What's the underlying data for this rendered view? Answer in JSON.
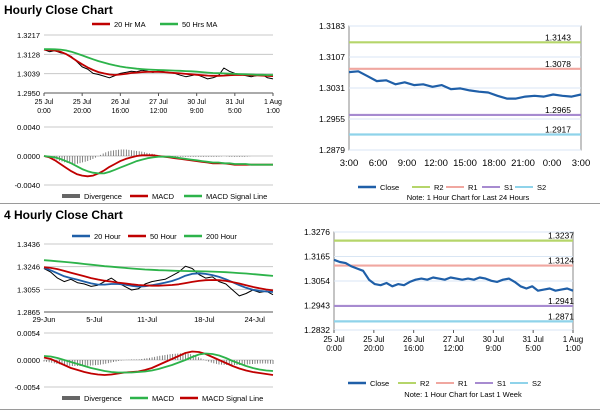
{
  "sections": [
    {
      "title": "Hourly Close Chart"
    },
    {
      "title": "4 Hourly Close Chart"
    }
  ],
  "colors": {
    "red": "#c00000",
    "green": "#2db34a",
    "black": "#000000",
    "blue": "#1f5fa8",
    "grid": "#c8c8c8",
    "divergence": "#666666",
    "r2": "#b5d56a",
    "r1": "#f0a7a0",
    "s1": "#a78bd0",
    "s2": "#8fd3ea",
    "gridBlue": "#d9e6f4"
  },
  "chart_data": [
    {
      "id": "hourly-price",
      "type": "line",
      "legend": [
        "20 Hr MA",
        "50 Hrs MA"
      ],
      "ylim": [
        1.295,
        1.3217
      ],
      "yticks": [
        "1.3217",
        "1.3128",
        "1.3039",
        "1.2950"
      ],
      "yticks_values": [
        1.3217,
        1.3128,
        1.3039,
        1.295
      ],
      "xticks": [
        "25 Jul\n0:00",
        "25 Jul\n20:00",
        "26 Jul\n16:00",
        "27 Jul\n12:00",
        "30 Jul\n9:00",
        "31 Jul\n5:00",
        "1 Aug\n1:00"
      ],
      "series": [
        {
          "name": "Close",
          "color": "black",
          "values": [
            1.315,
            1.314,
            1.3145,
            1.3135,
            1.313,
            1.3118,
            1.3095,
            1.307,
            1.306,
            1.304,
            1.3035,
            1.3028,
            1.302,
            1.303,
            1.304,
            1.3045,
            1.305,
            1.3048,
            1.3055,
            1.305,
            1.3045,
            1.3052,
            1.3048,
            1.3044,
            1.304,
            1.3032,
            1.3025,
            1.303,
            1.3035,
            1.3025,
            1.3015,
            1.302,
            1.303,
            1.3065,
            1.305,
            1.304,
            1.3035,
            1.303,
            1.3025,
            1.303,
            1.3035,
            1.302,
            1.3015
          ]
        },
        {
          "name": "20 Hr MA",
          "color": "red",
          "values": [
            1.315,
            1.3148,
            1.3145,
            1.314,
            1.313,
            1.3115,
            1.3098,
            1.3082,
            1.3068,
            1.3056,
            1.3046,
            1.304,
            1.3035,
            1.3033,
            1.3035,
            1.3038,
            1.3042,
            1.3044,
            1.3046,
            1.3047,
            1.3047,
            1.3047,
            1.3046,
            1.3044,
            1.3042,
            1.304,
            1.3038,
            1.3036,
            1.3034,
            1.3032,
            1.303,
            1.3029,
            1.3029,
            1.303,
            1.3032,
            1.3033,
            1.3033,
            1.3033,
            1.3032,
            1.3031,
            1.303,
            1.3029,
            1.3028
          ]
        },
        {
          "name": "50 Hrs MA",
          "color": "green",
          "values": [
            1.3152,
            1.3152,
            1.3151,
            1.315,
            1.3146,
            1.314,
            1.3132,
            1.3123,
            1.3114,
            1.3105,
            1.3097,
            1.309,
            1.3083,
            1.3077,
            1.3072,
            1.3068,
            1.3065,
            1.3062,
            1.306,
            1.3058,
            1.3057,
            1.3056,
            1.3055,
            1.3054,
            1.3053,
            1.3052,
            1.3051,
            1.305,
            1.3048,
            1.3046,
            1.3044,
            1.3042,
            1.3041,
            1.304,
            1.3039,
            1.3038,
            1.3037,
            1.3036,
            1.3035,
            1.3034,
            1.3034,
            1.3033,
            1.3033
          ]
        }
      ]
    },
    {
      "id": "hourly-macd",
      "type": "line",
      "legend": [
        "Divergence",
        "MACD",
        "MACD Signal Line"
      ],
      "ylim": [
        -0.004,
        0.004
      ],
      "yticks": [
        "0.0040",
        "0.0000",
        "-0.0040"
      ],
      "yticks_values": [
        0.004,
        0.0,
        -0.004
      ],
      "series": [
        {
          "name": "MACD",
          "color": "red",
          "values": [
            0.0,
            -0.0002,
            -0.0006,
            -0.0011,
            -0.0016,
            -0.0021,
            -0.0025,
            -0.0027,
            -0.0028,
            -0.0027,
            -0.0024,
            -0.002,
            -0.0015,
            -0.0011,
            -0.0007,
            -0.0004,
            -0.0002,
            0.0,
            0.0001,
            0.0001,
            0.0001,
            0.0,
            -0.0001,
            -0.0002,
            -0.0003,
            -0.0004,
            -0.0005,
            -0.0006,
            -0.0007,
            -0.0008,
            -0.0009,
            -0.001,
            -0.001,
            -0.001,
            -0.0011,
            -0.0012,
            -0.0012,
            -0.0012,
            -0.0012,
            -0.0012,
            -0.0012,
            -0.0012,
            -0.0012
          ]
        },
        {
          "name": "MACD Signal Line",
          "color": "green",
          "values": [
            0.0,
            -0.0001,
            -0.0002,
            -0.0004,
            -0.0007,
            -0.001,
            -0.0014,
            -0.0018,
            -0.0021,
            -0.0023,
            -0.0024,
            -0.0024,
            -0.0022,
            -0.0019,
            -0.0016,
            -0.0013,
            -0.001,
            -0.0007,
            -0.0005,
            -0.0003,
            -0.0002,
            -0.0001,
            -0.0001,
            -0.0001,
            -0.0002,
            -0.0003,
            -0.0004,
            -0.0005,
            -0.0006,
            -0.0007,
            -0.0008,
            -0.0009,
            -0.0009,
            -0.001,
            -0.001,
            -0.0011,
            -0.0011,
            -0.0011,
            -0.0012,
            -0.0012,
            -0.0012,
            -0.0012,
            -0.0012
          ]
        }
      ]
    },
    {
      "id": "hourly-levels",
      "type": "line",
      "ylim": [
        1.2879,
        1.3183
      ],
      "yticks": [
        "1.3183",
        "1.3107",
        "1.3031",
        "1.2955",
        "1.2879"
      ],
      "yticks_values": [
        1.3183,
        1.3107,
        1.3031,
        1.2955,
        1.2879
      ],
      "xticks": [
        "3:00",
        "6:00",
        "9:00",
        "12:00",
        "15:00",
        "18:00",
        "21:00",
        "0:00",
        "3:00"
      ],
      "levels": [
        {
          "name": "R2",
          "value": 1.3143,
          "label": "1.3143",
          "color": "r2"
        },
        {
          "name": "R1",
          "value": 1.3078,
          "label": "1.3078",
          "color": "r1"
        },
        {
          "name": "S1",
          "value": 1.2965,
          "label": "1.2965",
          "color": "s1"
        },
        {
          "name": "S2",
          "value": 1.2917,
          "label": "1.2917",
          "color": "s2"
        }
      ],
      "series": [
        {
          "name": "Close",
          "color": "blue",
          "values": [
            1.307,
            1.3072,
            1.306,
            1.3048,
            1.305,
            1.304,
            1.3045,
            1.3038,
            1.304,
            1.3034,
            1.3038,
            1.3028,
            1.303,
            1.3025,
            1.3022,
            1.302,
            1.3012,
            1.3005,
            1.3005,
            1.301,
            1.3012,
            1.301,
            1.3015,
            1.3012,
            1.301,
            1.3015
          ]
        }
      ],
      "legend": [
        "Close",
        "R2",
        "R1",
        "S1",
        "S2"
      ],
      "note": "Note: 1 Hour Chart for Last 24 Hours"
    },
    {
      "id": "4h-price",
      "type": "line",
      "legend": [
        "20 Hour",
        "50 Hour",
        "200 Hour"
      ],
      "ylim": [
        1.2865,
        1.3436
      ],
      "yticks": [
        "1.3436",
        "1.3246",
        "1.3055",
        "1.2865"
      ],
      "yticks_values": [
        1.3436,
        1.3246,
        1.3055,
        1.2865
      ],
      "xticks": [
        "29-Jun",
        "5-Jul",
        "11-Jul",
        "18-Jul",
        "24-Jul"
      ],
      "series": [
        {
          "name": "Close",
          "color": "black",
          "values": [
            1.323,
            1.32,
            1.315,
            1.312,
            1.314,
            1.311,
            1.31,
            1.308,
            1.309,
            1.312,
            1.315,
            1.311,
            1.308,
            1.305,
            1.306,
            1.31,
            1.312,
            1.313,
            1.314,
            1.317,
            1.32,
            1.325,
            1.323,
            1.318,
            1.315,
            1.316,
            1.312,
            1.31,
            1.305,
            1.3,
            1.302,
            1.305,
            1.303,
            1.304,
            1.301
          ]
        },
        {
          "name": "20 Hour",
          "color": "blue",
          "values": [
            1.3235,
            1.3215,
            1.319,
            1.3165,
            1.315,
            1.3135,
            1.312,
            1.3105,
            1.3095,
            1.3095,
            1.31,
            1.31,
            1.3095,
            1.3085,
            1.3078,
            1.3082,
            1.309,
            1.31,
            1.3112,
            1.3125,
            1.3145,
            1.317,
            1.3185,
            1.319,
            1.3185,
            1.3175,
            1.316,
            1.314,
            1.3115,
            1.309,
            1.3068,
            1.3052,
            1.3042,
            1.3037,
            1.3033
          ]
        },
        {
          "name": "50 Hour",
          "color": "red",
          "values": [
            1.324,
            1.3235,
            1.3225,
            1.321,
            1.3195,
            1.318,
            1.3165,
            1.315,
            1.3138,
            1.3128,
            1.312,
            1.3112,
            1.3105,
            1.3098,
            1.3092,
            1.3088,
            1.3086,
            1.3086,
            1.3088,
            1.3092,
            1.3098,
            1.3108,
            1.3118,
            1.3126,
            1.3132,
            1.3134,
            1.3132,
            1.3126,
            1.3116,
            1.3104,
            1.309,
            1.3076,
            1.3064,
            1.3054,
            1.3046
          ]
        },
        {
          "name": "200 Hour",
          "color": "green",
          "values": [
            1.33,
            1.3296,
            1.3291,
            1.3286,
            1.3281,
            1.3275,
            1.3268,
            1.3262,
            1.3256,
            1.325,
            1.3245,
            1.324,
            1.3235,
            1.323,
            1.3226,
            1.3222,
            1.3219,
            1.3216,
            1.3214,
            1.3212,
            1.321,
            1.3209,
            1.3208,
            1.3207,
            1.3206,
            1.3204,
            1.3202,
            1.3199,
            1.3196,
            1.3192,
            1.3188,
            1.3183,
            1.3178,
            1.3173,
            1.3168
          ]
        }
      ]
    },
    {
      "id": "4h-macd",
      "type": "line",
      "legend": [
        "Divergence",
        "MACD",
        "MACD Signal Line"
      ],
      "ylim": [
        -0.0054,
        0.0054
      ],
      "yticks": [
        "0.0054",
        "0.0000",
        "-0.0054"
      ],
      "yticks_values": [
        0.0054,
        0.0,
        -0.0054
      ],
      "series": [
        {
          "name": "MACD",
          "color": "red",
          "values": [
            0.0005,
            0.0002,
            -0.0004,
            -0.001,
            -0.0016,
            -0.002,
            -0.0024,
            -0.0027,
            -0.0029,
            -0.003,
            -0.0029,
            -0.0027,
            -0.0025,
            -0.0024,
            -0.0023,
            -0.002,
            -0.0016,
            -0.001,
            -0.0004,
            0.0002,
            0.0008,
            0.0014,
            0.0017,
            0.0016,
            0.0012,
            0.0006,
            0.0,
            -0.0006,
            -0.0012,
            -0.0017,
            -0.0021,
            -0.0024,
            -0.0026,
            -0.0028,
            -0.003
          ]
        },
        {
          "name": "MACD Signal Line",
          "color": "green",
          "values": [
            0.0008,
            0.0007,
            0.0004,
            0.0,
            -0.0004,
            -0.0008,
            -0.0012,
            -0.0016,
            -0.0019,
            -0.0022,
            -0.0024,
            -0.0025,
            -0.0025,
            -0.0025,
            -0.0024,
            -0.0023,
            -0.0021,
            -0.0018,
            -0.0014,
            -0.001,
            -0.0005,
            0.0,
            0.0006,
            0.0011,
            0.0013,
            0.0012,
            0.0009,
            0.0004,
            -0.0002,
            -0.0007,
            -0.0012,
            -0.0016,
            -0.0019,
            -0.0021,
            -0.0022
          ]
        }
      ]
    },
    {
      "id": "4h-levels",
      "type": "line",
      "ylim": [
        1.2832,
        1.3276
      ],
      "yticks": [
        "1.3276",
        "1.3165",
        "1.3054",
        "1.2943",
        "1.2832"
      ],
      "yticks_values": [
        1.3276,
        1.3165,
        1.3054,
        1.2943,
        1.2832
      ],
      "xticks": [
        "25 Jul\n0:00",
        "25 Jul\n20:00",
        "26 Jul\n16:00",
        "27 Jul\n12:00",
        "30 Jul\n9:00",
        "31 Jul\n5:00",
        "1 Aug\n1:00"
      ],
      "levels": [
        {
          "name": "R2",
          "value": 1.3237,
          "label": "1.3237",
          "color": "r2"
        },
        {
          "name": "R1",
          "value": 1.3124,
          "label": "1.3124",
          "color": "r1"
        },
        {
          "name": "S1",
          "value": 1.2941,
          "label": "1.2941",
          "color": "s1"
        },
        {
          "name": "S2",
          "value": 1.2871,
          "label": "1.2871",
          "color": "s2"
        }
      ],
      "series": [
        {
          "name": "Close",
          "color": "blue",
          "values": [
            1.315,
            1.314,
            1.3135,
            1.312,
            1.311,
            1.31,
            1.306,
            1.304,
            1.3035,
            1.3045,
            1.303,
            1.304,
            1.3035,
            1.305,
            1.306,
            1.3065,
            1.306,
            1.307,
            1.3065,
            1.306,
            1.307,
            1.3065,
            1.306,
            1.3065,
            1.306,
            1.307,
            1.3065,
            1.3055,
            1.305,
            1.306,
            1.3065,
            1.305,
            1.303,
            1.302,
            1.303,
            1.301,
            1.3015,
            1.302,
            1.301,
            1.3015,
            1.302,
            1.301
          ]
        }
      ],
      "legend": [
        "Close",
        "R2",
        "R1",
        "S1",
        "S2"
      ],
      "note": "Note: 1 Hour Chart for Last 1 Week"
    }
  ]
}
